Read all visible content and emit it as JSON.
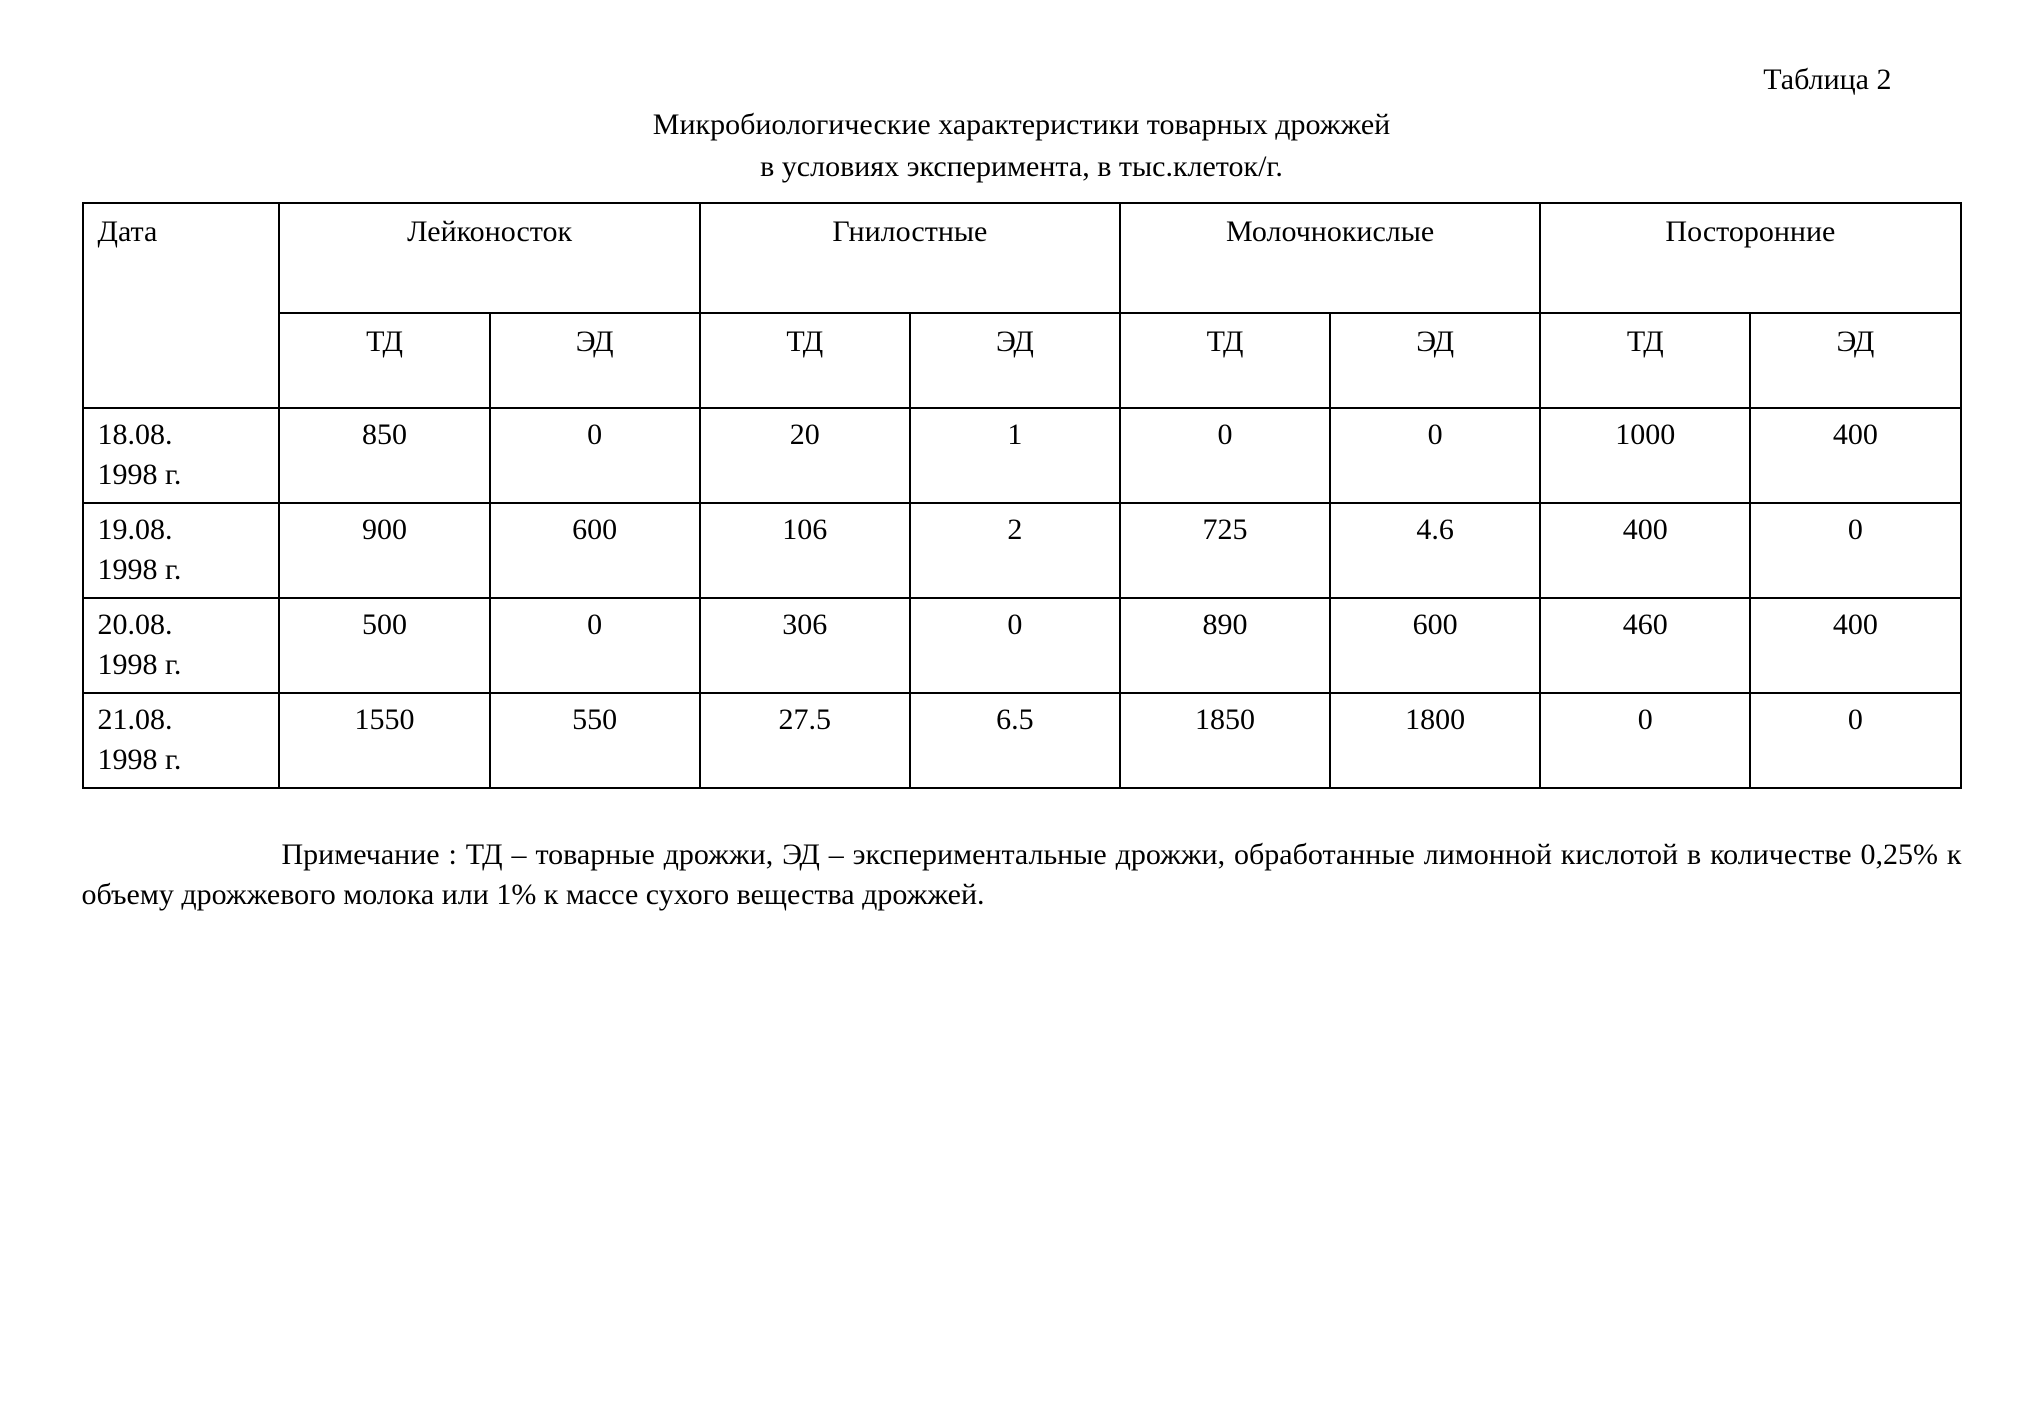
{
  "table_number": "Таблица 2",
  "title": "Микробиологические характеристики товарных дрожжей",
  "subtitle": "в условиях эксперимента,  в тыс.клеток/г.",
  "table": {
    "type": "table",
    "background_color": "#ffffff",
    "border_color": "#000000",
    "border_width": 2,
    "font_family": "Times New Roman",
    "header_fontsize": 30,
    "body_fontsize": 30,
    "columns": {
      "date_header": "Дата",
      "groups": [
        {
          "label": "Лейконосток",
          "sub": [
            "ТД",
            "ЭД"
          ]
        },
        {
          "label": "Гнилостные",
          "sub": [
            "ТД",
            "ЭД"
          ]
        },
        {
          "label": "Молочнокислые",
          "sub": [
            "ТД",
            "ЭД"
          ]
        },
        {
          "label": "Посторонние",
          "sub": [
            "ТД",
            "ЭД"
          ]
        }
      ]
    },
    "rows": [
      {
        "date": "18.08.\n1998 г.",
        "vals": [
          "850",
          "0",
          "20",
          "1",
          "0",
          "0",
          "1000",
          "400"
        ]
      },
      {
        "date": "19.08.\n1998 г.",
        "vals": [
          "900",
          "600",
          "106",
          "2",
          "725",
          "4.6",
          "400",
          "0"
        ]
      },
      {
        "date": "20.08.\n1998 г.",
        "vals": [
          "500",
          "0",
          "306",
          "0",
          "890",
          "600",
          "460",
          "400"
        ]
      },
      {
        "date": "21.08.\n1998 г.",
        "vals": [
          "1550",
          "550",
          "27.5",
          "6.5",
          "1850",
          "1800",
          "0",
          "0"
        ]
      }
    ]
  },
  "note": "Примечание : ТД – товарные дрожжи, ЭД – экспериментальные дрожжи, обработанные лимонной кислотой в количестве 0,25% к объему дрожжевого молока или 1% к массе сухого вещества дрожжей."
}
